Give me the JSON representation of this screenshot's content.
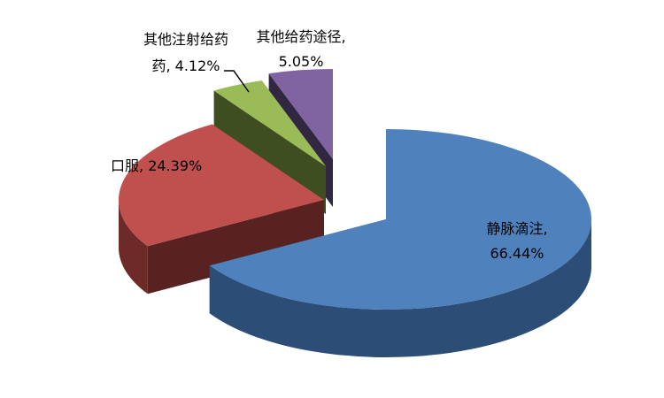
{
  "chart_data": {
    "type": "pie",
    "title": "",
    "style": "3d-exploded",
    "legend": "none",
    "slices": [
      {
        "label": "静脉滴注",
        "value": 66.44,
        "value_text": "66.44%",
        "color": "#4F81BD",
        "side_color": "#2C4D75"
      },
      {
        "label": "口服",
        "value": 24.39,
        "value_text": "24.39%",
        "color": "#C0504D",
        "side_color": "#6E2A28"
      },
      {
        "label": "其他注射给药",
        "value": 4.12,
        "value_text": "4.12%",
        "color": "#9BBB59",
        "side_color": "#4F6128"
      },
      {
        "label": "其他给药途径",
        "value": 5.05,
        "value_text": "5.05%",
        "color": "#8064A2",
        "side_color": "#3F3151"
      }
    ]
  }
}
